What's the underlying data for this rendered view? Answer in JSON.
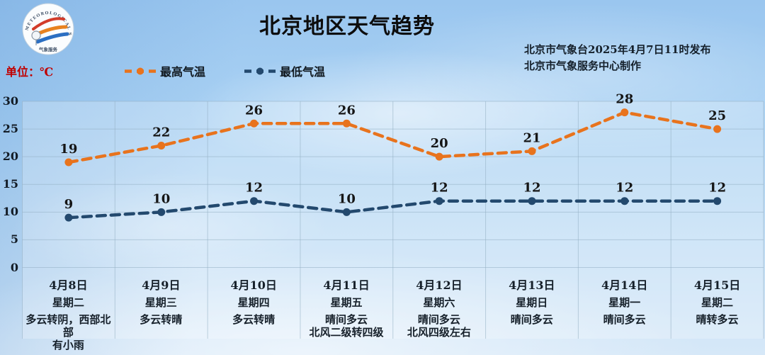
{
  "logo": {
    "arc_text": "METEOROLOGICAL SERVICE",
    "bottom_text": "气象服务"
  },
  "header": {
    "title": "北京地区天气趋势",
    "issued_line1": "北京市气象台2025年4月7日11时发布",
    "issued_line2": "北京市气象服务中心制作",
    "unit_label": "单位：℃"
  },
  "colors": {
    "high_series": "#e8731d",
    "low_series": "#23496e",
    "unit_label": "#c00000",
    "grid": "#93aec2",
    "data_label_text": "#151515",
    "panel_overlay": "rgba(255,255,255,0.24)"
  },
  "chart_data": {
    "type": "line",
    "title": "北京地区天气趋势",
    "unit": "℃",
    "categories": [
      "4月8日",
      "4月9日",
      "4月10日",
      "4月11日",
      "4月12日",
      "4月13日",
      "4月14日",
      "4月15日"
    ],
    "weekdays": [
      "星期二",
      "星期三",
      "星期四",
      "星期五",
      "星期六",
      "星期日",
      "星期一",
      "星期二"
    ],
    "weather": [
      [
        "多云转阴，西部北部",
        "有小雨"
      ],
      [
        "多云转晴"
      ],
      [
        "多云转晴"
      ],
      [
        "晴间多云",
        "北风二级转四级"
      ],
      [
        "晴间多云",
        "北风四级左右"
      ],
      [
        "晴间多云"
      ],
      [
        "晴间多云"
      ],
      [
        "晴转多云"
      ]
    ],
    "series": [
      {
        "name": "最高气温",
        "color": "#e8731d",
        "values": [
          19,
          22,
          26,
          26,
          20,
          21,
          28,
          25
        ]
      },
      {
        "name": "最低气温",
        "color": "#23496e",
        "values": [
          9,
          10,
          12,
          10,
          12,
          12,
          12,
          12
        ]
      }
    ],
    "ylim": [
      0,
      30
    ],
    "yticks": [
      0,
      5,
      10,
      15,
      20,
      25,
      30
    ],
    "grid": true,
    "legend_position": "top-left",
    "line_style": "dashed",
    "marker": "circle"
  }
}
